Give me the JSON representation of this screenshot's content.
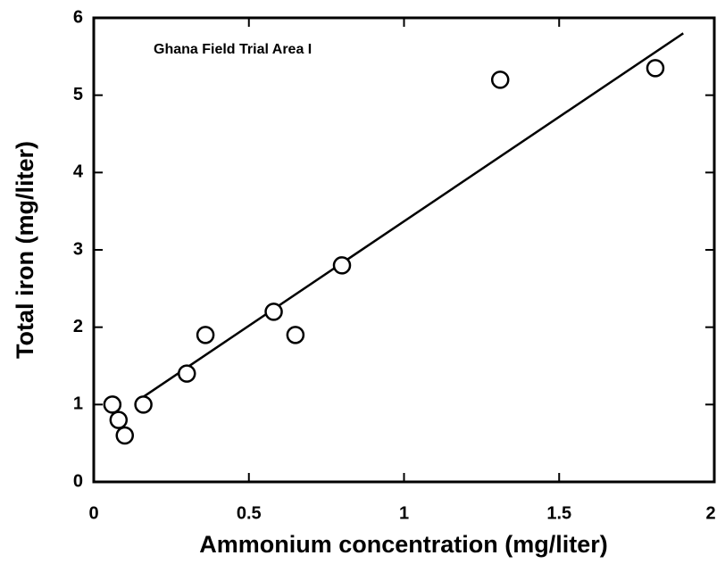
{
  "chart_data": {
    "type": "scatter",
    "title": "Ghana Field Trial Area I",
    "x_label": "Ammonium concentration (mg/liter)",
    "y_label": "Total iron (mg/liter)",
    "color": "#000000",
    "points": {
      "x": [
        0.06,
        0.08,
        0.1,
        0.16,
        0.3,
        0.36,
        0.58,
        0.65,
        0.8,
        1.31,
        1.81
      ],
      "values": [
        1.0,
        0.8,
        0.6,
        1.0,
        1.4,
        1.9,
        2.2,
        1.9,
        2.8,
        5.2,
        5.35
      ]
    },
    "fit_line": {
      "x": [
        0.16,
        1.9
      ],
      "values": [
        1.1,
        5.8
      ]
    },
    "xlim": [
      0,
      2
    ],
    "xticks": [
      0,
      0.5,
      1,
      1.5,
      2
    ],
    "ylim": [
      0,
      6
    ],
    "yticks": [
      0,
      1,
      2,
      3,
      4,
      5,
      6
    ],
    "grid": false
  }
}
